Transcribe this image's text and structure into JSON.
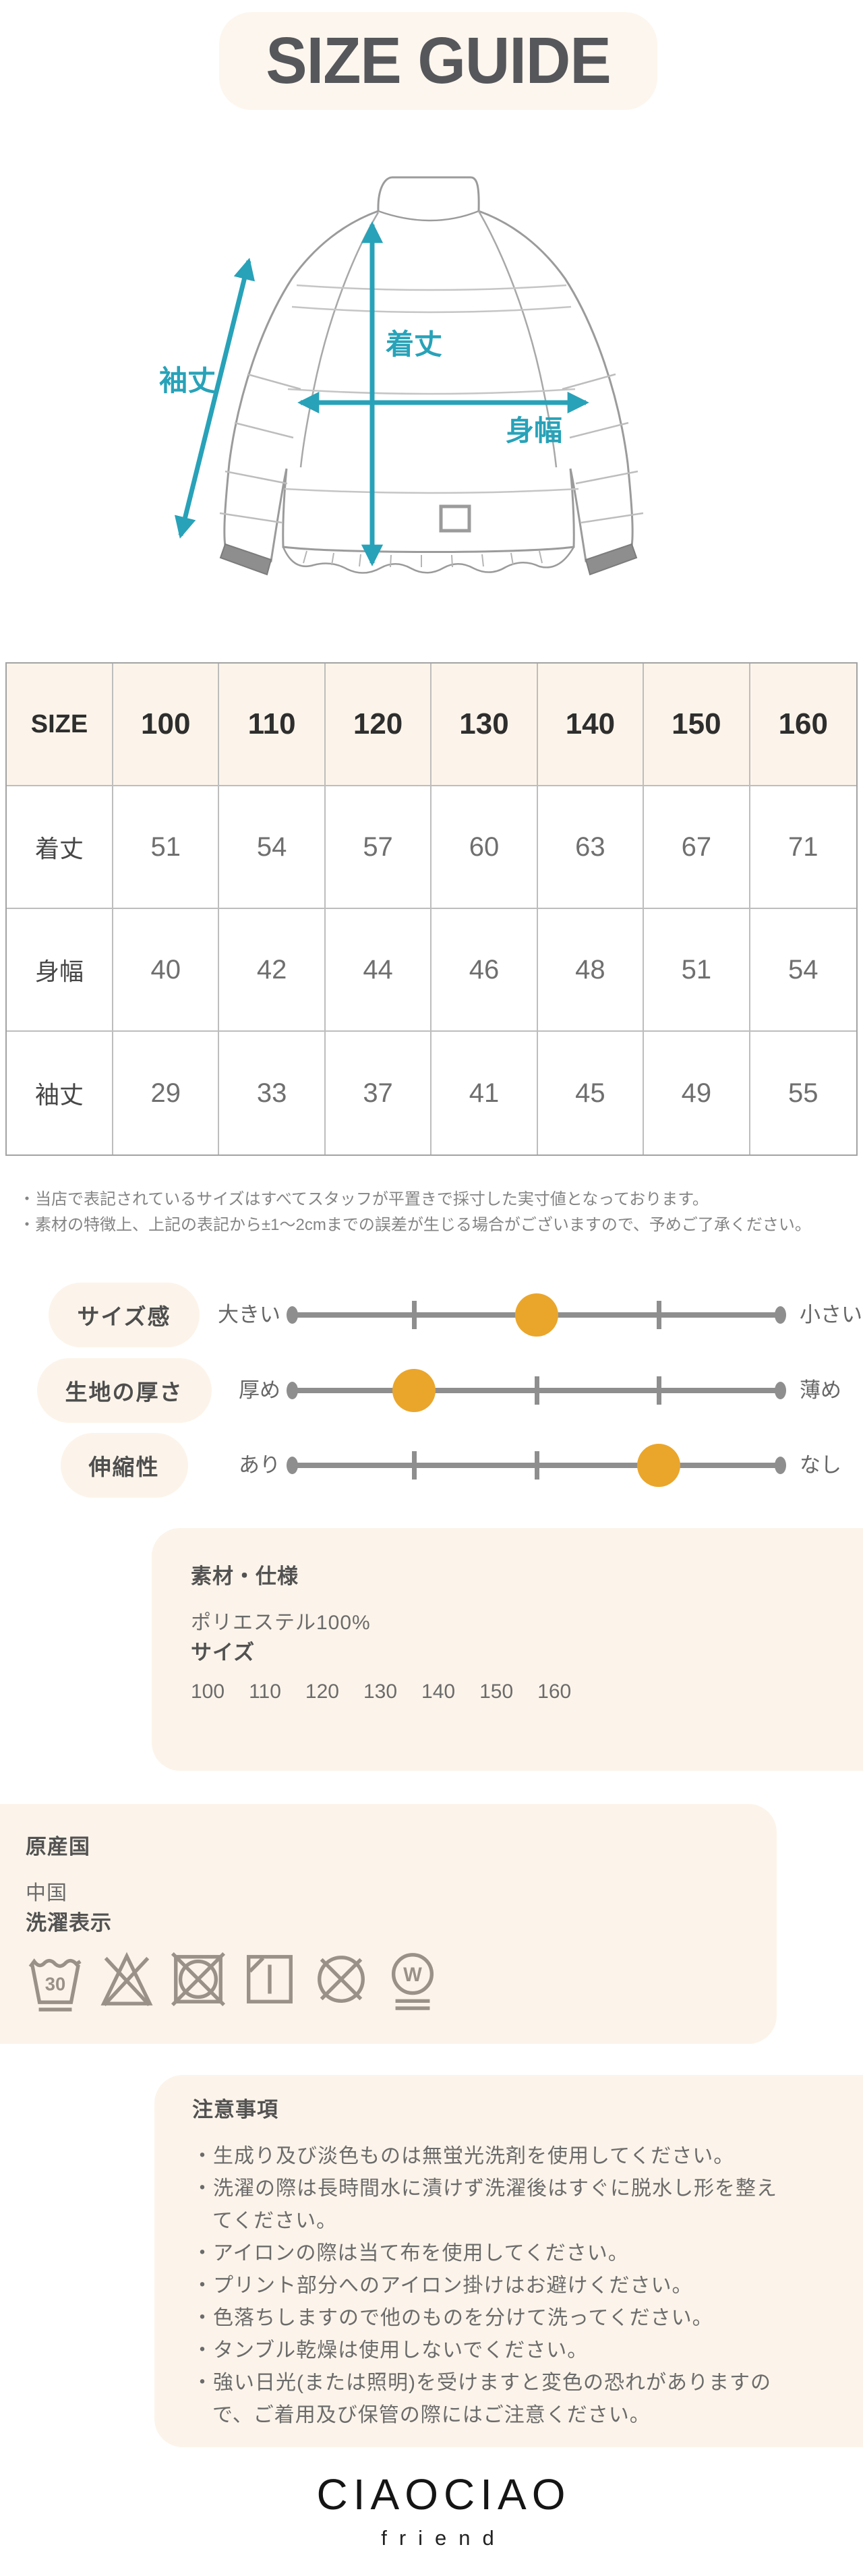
{
  "title": {
    "text": "SIZE GUIDE",
    "badge_bg": "#FDF6EE",
    "color": "#56575B"
  },
  "diagram": {
    "sleeve_label": "袖丈",
    "length_label": "着丈",
    "width_label": "身幅",
    "arrow_color": "#28A2B8",
    "outline_color": "#9b9b9b"
  },
  "size_table": {
    "header": [
      "SIZE",
      "100",
      "110",
      "120",
      "130",
      "140",
      "150",
      "160"
    ],
    "rows": [
      {
        "label": "着丈",
        "values": [
          "51",
          "54",
          "57",
          "60",
          "63",
          "67",
          "71"
        ]
      },
      {
        "label": "身幅",
        "values": [
          "40",
          "42",
          "44",
          "46",
          "48",
          "51",
          "54"
        ]
      },
      {
        "label": "袖丈",
        "values": [
          "29",
          "33",
          "37",
          "41",
          "45",
          "49",
          "55"
        ]
      }
    ],
    "header_bg": "#FCF4EA",
    "border_color": "#bdbdbd"
  },
  "notes": [
    "・当店で表記されているサイズはすべてスタッフが平置きで採寸した実寸値となっております。",
    "・素材の特徴上、上記の表記から±1～2cmまでの誤差が生じる場合がございますので、予めご了承ください。"
  ],
  "attributes": {
    "marker_color": "#EAA62B",
    "track_color": "#8e8e8e",
    "pill_bg": "#FCF4EA",
    "rows": [
      {
        "label": "サイズ感",
        "left": "大きい",
        "right": "小さい",
        "percent": 50
      },
      {
        "label": "生地の厚さ",
        "left": "厚め",
        "right": "薄め",
        "percent": 25
      },
      {
        "label": "伸縮性",
        "left": "あり",
        "right": "なし",
        "percent": 75
      }
    ]
  },
  "material": {
    "heading": "素材・仕様",
    "body": "ポリエステル100%",
    "size_heading": "サイズ",
    "sizes": [
      "100",
      "110",
      "120",
      "130",
      "140",
      "150",
      "160"
    ]
  },
  "origin": {
    "heading": "原産国",
    "body": "中国",
    "care_heading": "洗濯表示",
    "care_icons": [
      "wash-30-gentle",
      "no-bleach",
      "no-tumble-dry",
      "hang-dry-in-shade",
      "no-dry-clean",
      "wet-clean-gentle"
    ],
    "care_wash_temp": "30",
    "care_wet_letter": "W"
  },
  "cautions": {
    "heading": "注意事項",
    "items": [
      "・生成り及び淡色ものは無蛍光洗剤を使用してください。",
      "・洗濯の際は長時間水に漬けず洗濯後はすぐに脱水し形を整えてください。",
      "・アイロンの際は当て布を使用してください。",
      "・プリント部分へのアイロン掛けはお避けください。",
      "・色落ちしますので他のものを分けて洗ってください。",
      "・タンブル乾燥は使用しないでください。",
      "・強い日光(または照明)を受けますと変色の恐れがありますので、ご着用及び保管の際にはご注意ください。"
    ]
  },
  "logo": {
    "brand": "CIAOCIAO",
    "sub": "friend"
  }
}
